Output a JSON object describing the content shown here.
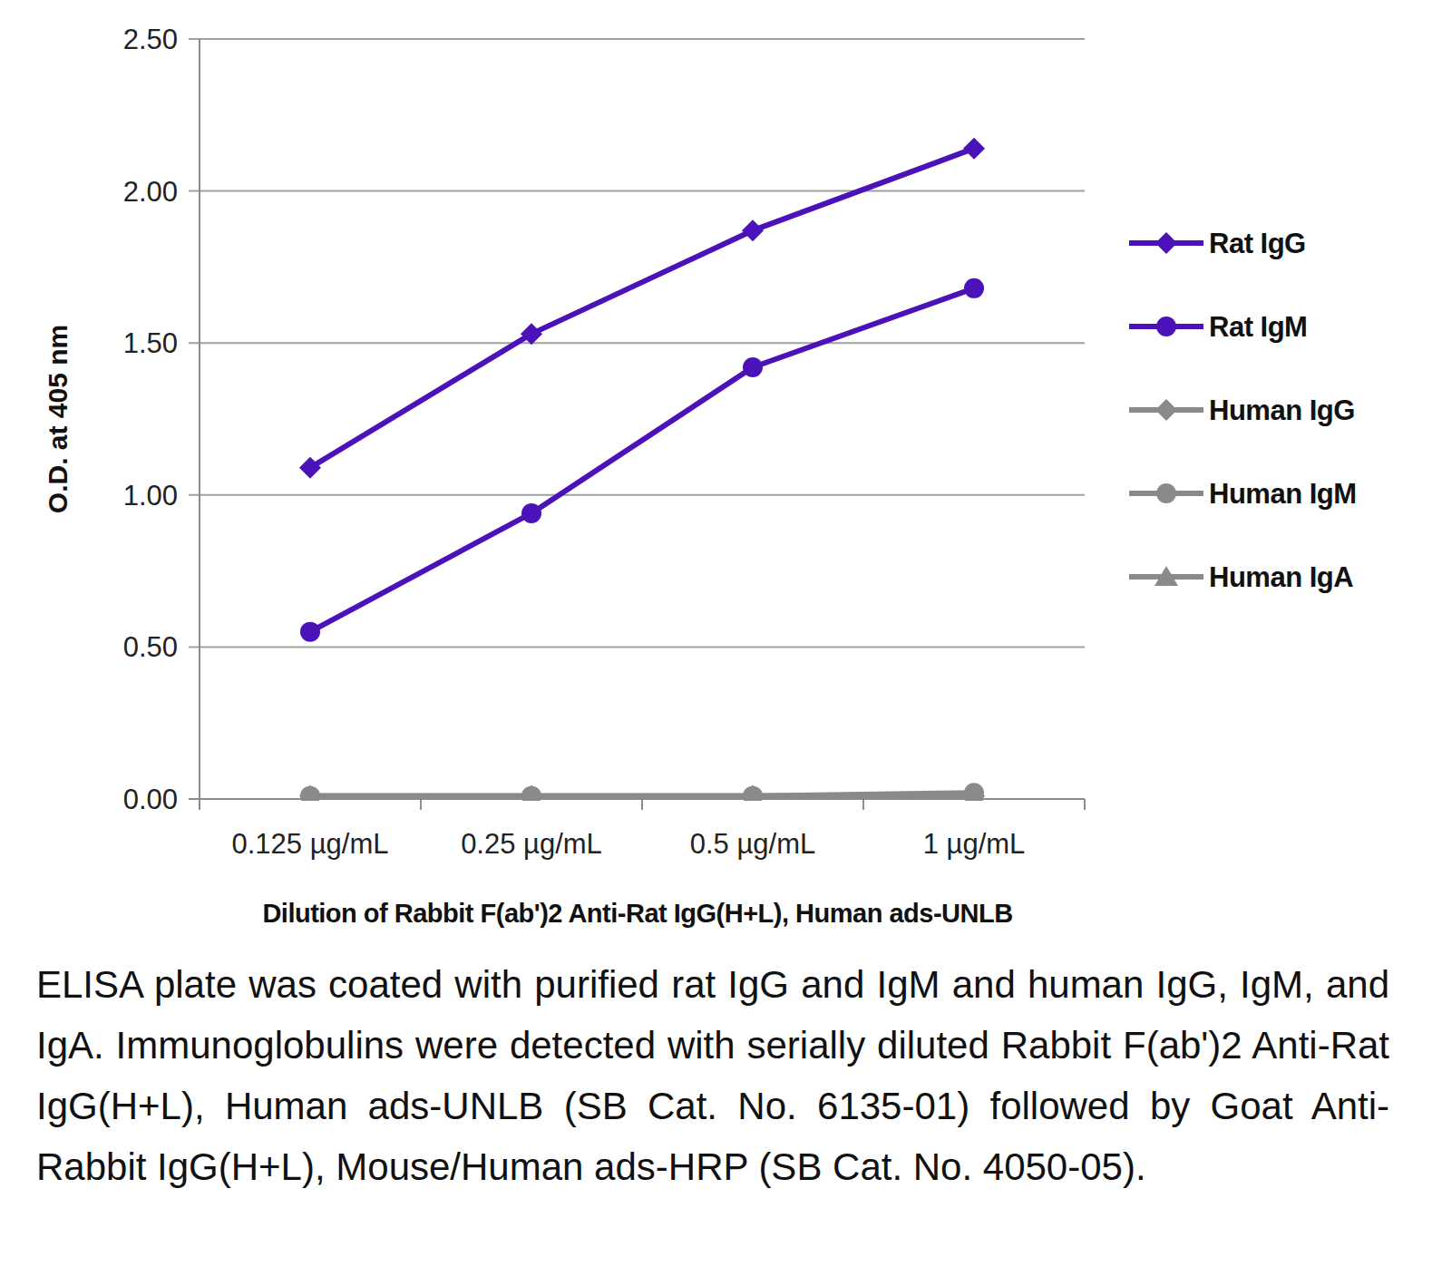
{
  "chart_data": {
    "type": "line",
    "x_label": "Dilution of Rabbit F(ab')2 Anti-Rat IgG(H+L), Human ads-UNLB",
    "y_label": "O.D. at 405 nm",
    "annotations": [
      "ELISA plate was coated with purified rat IgG and IgM and human IgG, IgM, and IgA.  Immunoglobulins were detected with serially diluted Rabbit F(ab')2 Anti-Rat IgG(H+L), Human ads-UNLB (SB Cat. No. 6135-01) followed by Goat Anti-Rabbit IgG(H+L), Mouse/Human ads-HRP (SB Cat. No. 4050-05)."
    ],
    "categories": [
      "0.125 µg/mL",
      "0.25 µg/mL",
      "0.5 µg/mL",
      "1 µg/mL"
    ],
    "series": [
      {
        "name": "Rat IgG",
        "color": "#4a12b8",
        "marker": "diamond",
        "values": [
          1.09,
          1.53,
          1.87,
          2.14
        ]
      },
      {
        "name": "Rat IgM",
        "color": "#4a12b8",
        "marker": "circle",
        "values": [
          0.55,
          0.94,
          1.42,
          1.68
        ]
      },
      {
        "name": "Human IgG",
        "color": "#8a8a8a",
        "marker": "diamond",
        "values": [
          0.01,
          0.01,
          0.01,
          0.01
        ]
      },
      {
        "name": "Human IgM",
        "color": "#8a8a8a",
        "marker": "circle",
        "values": [
          0.01,
          0.01,
          0.01,
          0.02
        ]
      },
      {
        "name": "Human IgA",
        "color": "#8a8a8a",
        "marker": "triangle",
        "values": [
          0.01,
          0.01,
          0.01,
          0.01
        ]
      }
    ],
    "ylim": [
      0,
      2.5
    ],
    "yticks": [
      {
        "value": 0,
        "label": "0.00"
      },
      {
        "value": 0.5,
        "label": "0.50"
      },
      {
        "value": 1,
        "label": "1.00"
      },
      {
        "value": 1.5,
        "label": "1.50"
      },
      {
        "value": 2,
        "label": "2.00"
      },
      {
        "value": 2.5,
        "label": "2.50"
      }
    ],
    "grid": true,
    "legend": "right"
  }
}
